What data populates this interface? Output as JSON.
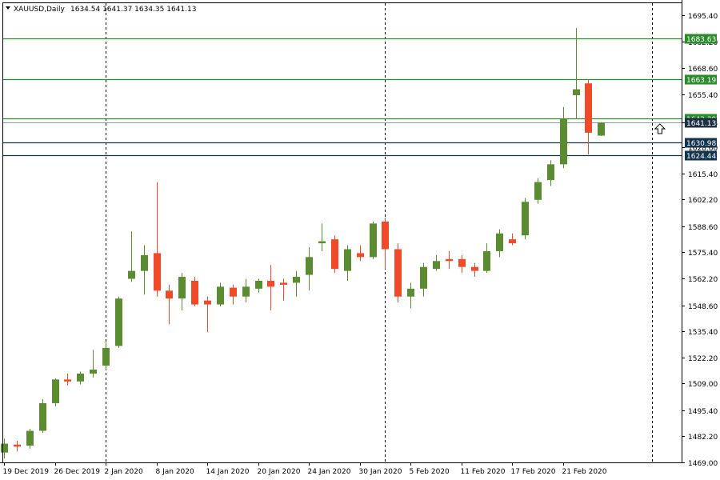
{
  "header": {
    "symbol": "XAUUSD,Daily",
    "ohlc": "1634.54 1641.37 1634.35 1641.13"
  },
  "colors": {
    "bull": "#5b8c32",
    "bear": "#f04a2b",
    "support_line": "#2b8a2b",
    "resistance_line": "#14334d",
    "price_line": "#1f2f44",
    "separator": "#000000"
  },
  "chart_data": {
    "type": "candlestick",
    "title": "XAUUSD,Daily",
    "ylim": [
      1469.0,
      1701.6
    ],
    "y_ticks": [
      1469.0,
      1482.2,
      1495.4,
      1509.0,
      1522.2,
      1535.4,
      1548.6,
      1562.2,
      1575.4,
      1588.6,
      1602.2,
      1615.4,
      1628.6,
      1641.13,
      1655.4,
      1668.6,
      1682.2,
      1695.4
    ],
    "x_labels": [
      {
        "label": "19 Dec 2019",
        "index": 0
      },
      {
        "label": "26 Dec 2019",
        "index": 4
      },
      {
        "label": "2 Jan 2020",
        "index": 8
      },
      {
        "label": "8 Jan 2020",
        "index": 12
      },
      {
        "label": "14 Jan 2020",
        "index": 16
      },
      {
        "label": "20 Jan 2020",
        "index": 20
      },
      {
        "label": "24 Jan 2020",
        "index": 24
      },
      {
        "label": "30 Jan 2020",
        "index": 28
      },
      {
        "label": "5 Feb 2020",
        "index": 32
      },
      {
        "label": "11 Feb 2020",
        "index": 36
      },
      {
        "label": "17 Feb 2020",
        "index": 40
      },
      {
        "label": "21 Feb 2020",
        "index": 44
      }
    ],
    "separators": [
      8,
      30,
      51
    ],
    "candles": [
      {
        "o": 1474.0,
        "h": 1481.0,
        "l": 1471.0,
        "c": 1478.5
      },
      {
        "o": 1478.0,
        "h": 1480.0,
        "l": 1474.5,
        "c": 1477.0
      },
      {
        "o": 1477.5,
        "h": 1486.0,
        "l": 1476.0,
        "c": 1485.0
      },
      {
        "o": 1485.0,
        "h": 1501.0,
        "l": 1484.0,
        "c": 1499.0
      },
      {
        "o": 1499.0,
        "h": 1511.5,
        "l": 1497.5,
        "c": 1511.0
      },
      {
        "o": 1511.0,
        "h": 1514.0,
        "l": 1508.0,
        "c": 1510.0
      },
      {
        "o": 1510.0,
        "h": 1515.0,
        "l": 1508.5,
        "c": 1514.0
      },
      {
        "o": 1514.0,
        "h": 1526.0,
        "l": 1512.0,
        "c": 1516.0
      },
      {
        "o": 1518.0,
        "h": 1530.0,
        "l": 1516.0,
        "c": 1527.0
      },
      {
        "o": 1528.0,
        "h": 1553.0,
        "l": 1527.0,
        "c": 1552.0
      },
      {
        "o": 1562.0,
        "h": 1586.0,
        "l": 1560.5,
        "c": 1566.0
      },
      {
        "o": 1566.0,
        "h": 1579.0,
        "l": 1554.0,
        "c": 1574.0
      },
      {
        "o": 1575.0,
        "h": 1611.0,
        "l": 1553.0,
        "c": 1556.0
      },
      {
        "o": 1556.0,
        "h": 1559.0,
        "l": 1539.0,
        "c": 1552.0
      },
      {
        "o": 1552.0,
        "h": 1565.0,
        "l": 1546.0,
        "c": 1563.0
      },
      {
        "o": 1561.0,
        "h": 1563.0,
        "l": 1548.0,
        "c": 1549.0
      },
      {
        "o": 1551.0,
        "h": 1553.0,
        "l": 1535.0,
        "c": 1549.0
      },
      {
        "o": 1549.0,
        "h": 1560.0,
        "l": 1548.0,
        "c": 1558.0
      },
      {
        "o": 1557.5,
        "h": 1559.0,
        "l": 1549.0,
        "c": 1553.0
      },
      {
        "o": 1553.0,
        "h": 1562.0,
        "l": 1550.0,
        "c": 1558.0
      },
      {
        "o": 1557.0,
        "h": 1562.0,
        "l": 1555.0,
        "c": 1561.0
      },
      {
        "o": 1561.0,
        "h": 1569.0,
        "l": 1546.0,
        "c": 1558.0
      },
      {
        "o": 1560.0,
        "h": 1562.0,
        "l": 1551.0,
        "c": 1559.0
      },
      {
        "o": 1560.0,
        "h": 1566.0,
        "l": 1553.0,
        "c": 1563.0
      },
      {
        "o": 1564.0,
        "h": 1578.0,
        "l": 1556.0,
        "c": 1573.0
      },
      {
        "o": 1580.0,
        "h": 1590.0,
        "l": 1576.0,
        "c": 1581.0
      },
      {
        "o": 1582.0,
        "h": 1584.0,
        "l": 1565.0,
        "c": 1567.0
      },
      {
        "o": 1566.0,
        "h": 1579.0,
        "l": 1561.0,
        "c": 1577.0
      },
      {
        "o": 1575.0,
        "h": 1579.0,
        "l": 1571.0,
        "c": 1573.0
      },
      {
        "o": 1573.0,
        "h": 1591.0,
        "l": 1572.0,
        "c": 1590.0
      },
      {
        "o": 1591.0,
        "h": 1593.0,
        "l": 1567.0,
        "c": 1577.0
      },
      {
        "o": 1577.0,
        "h": 1580.0,
        "l": 1550.0,
        "c": 1553.0
      },
      {
        "o": 1553.0,
        "h": 1560.0,
        "l": 1547.0,
        "c": 1557.0
      },
      {
        "o": 1557.0,
        "h": 1570.0,
        "l": 1553.0,
        "c": 1568.0
      },
      {
        "o": 1567.0,
        "h": 1574.0,
        "l": 1566.0,
        "c": 1571.0
      },
      {
        "o": 1572.0,
        "h": 1576.0,
        "l": 1567.0,
        "c": 1571.0
      },
      {
        "o": 1572.0,
        "h": 1574.0,
        "l": 1565.0,
        "c": 1568.0
      },
      {
        "o": 1568.0,
        "h": 1570.0,
        "l": 1563.0,
        "c": 1566.0
      },
      {
        "o": 1566.0,
        "h": 1580.0,
        "l": 1565.0,
        "c": 1576.0
      },
      {
        "o": 1576.0,
        "h": 1587.0,
        "l": 1573.0,
        "c": 1585.0
      },
      {
        "o": 1582.0,
        "h": 1585.0,
        "l": 1579.0,
        "c": 1580.0
      },
      {
        "o": 1584.0,
        "h": 1603.0,
        "l": 1582.0,
        "c": 1601.0
      },
      {
        "o": 1602.0,
        "h": 1613.0,
        "l": 1600.0,
        "c": 1611.0
      },
      {
        "o": 1612.0,
        "h": 1622.0,
        "l": 1609.0,
        "c": 1620.0
      },
      {
        "o": 1620.0,
        "h": 1649.0,
        "l": 1618.0,
        "c": 1643.0
      },
      {
        "o": 1655.0,
        "h": 1689.0,
        "l": 1643.0,
        "c": 1658.0
      },
      {
        "o": 1661.0,
        "h": 1663.0,
        "l": 1625.0,
        "c": 1636.0
      },
      {
        "o": 1634.54,
        "h": 1641.37,
        "l": 1634.35,
        "c": 1641.13
      }
    ],
    "levels": [
      {
        "value": 1683.63,
        "label": "1683.63",
        "kind": "support"
      },
      {
        "value": 1663.19,
        "label": "1663.19",
        "kind": "support"
      },
      {
        "value": 1643.39,
        "label": "1643.39",
        "kind": "support"
      },
      {
        "value": 1630.98,
        "label": "1630.98",
        "kind": "resistance"
      },
      {
        "value": 1624.44,
        "label": "1624.44",
        "kind": "resistance"
      }
    ],
    "current_price": {
      "value": 1641.13,
      "label": "1641.13"
    },
    "arrow_annotation": {
      "index": 51,
      "price": 1638.0,
      "icon": "up-arrow-icon"
    }
  }
}
